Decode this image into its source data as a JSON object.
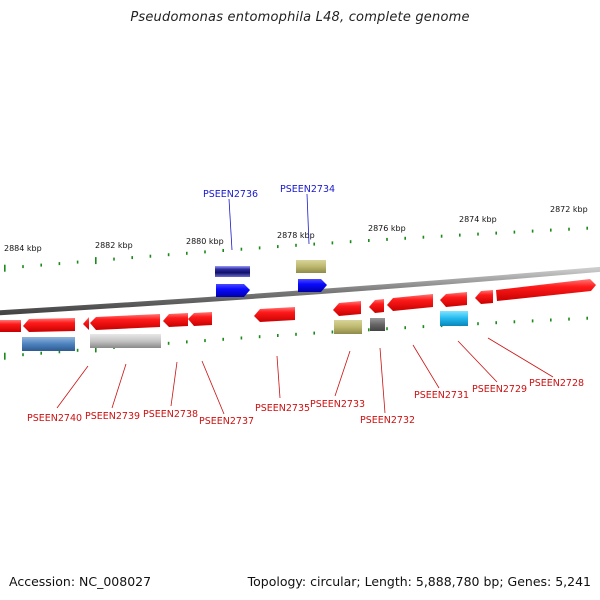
{
  "title": "Pseudomonas entomophila L48, complete genome",
  "accession_text": "Accession: NC_008027",
  "topology_text": "Topology: circular; Length: 5,888,780 bp; Genes: 5,241",
  "kbp_labels": [
    "2884 kbp",
    "2882 kbp",
    "2880 kbp",
    "2878 kbp",
    "2876 kbp",
    "2874 kbp",
    "2872 kbp"
  ],
  "top_genes": [
    {
      "label": "PSEEN2736",
      "color": "#1a1acc"
    },
    {
      "label": "PSEEN2734",
      "color": "#1a1acc"
    }
  ],
  "bottom_genes": [
    {
      "label": "PSEEN2740"
    },
    {
      "label": "PSEEN2739"
    },
    {
      "label": "PSEEN2738"
    },
    {
      "label": "PSEEN2737"
    },
    {
      "label": "PSEEN2735"
    },
    {
      "label": "PSEEN2733"
    },
    {
      "label": "PSEEN2732"
    },
    {
      "label": "PSEEN2731"
    },
    {
      "label": "PSEEN2729"
    },
    {
      "label": "PSEEN2728"
    }
  ],
  "colors": {
    "cds": "#ee1111",
    "label_top": "#1a1acc",
    "label_bottom": "#cc1111",
    "tick": "#1a8a1a",
    "backbone": "#888888"
  }
}
